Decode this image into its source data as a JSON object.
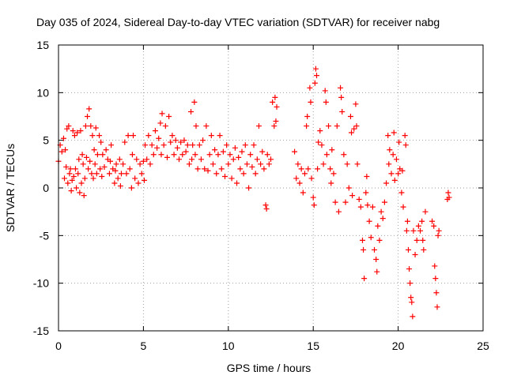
{
  "chart_data": {
    "type": "scatter",
    "title": "Day 035 of 2024, Sidereal Day-to-day VTEC variation (SDTVAR) for receiver nabg",
    "xlabel": "GPS time / hours",
    "ylabel": "SDTVAR / TECUs",
    "xlim": [
      0,
      25
    ],
    "ylim": [
      -15,
      15
    ],
    "xticks": [
      0,
      5,
      10,
      15,
      20,
      25
    ],
    "yticks": [
      -15,
      -10,
      -5,
      0,
      5,
      10,
      15
    ],
    "grid": true,
    "marker": "+",
    "color": "#ff0000",
    "series": [
      {
        "name": "SDTVAR",
        "points": [
          [
            0.0,
            2.8
          ],
          [
            0.1,
            4.5
          ],
          [
            0.2,
            3.8
          ],
          [
            0.3,
            5.2
          ],
          [
            0.35,
            1.0
          ],
          [
            0.4,
            4.0
          ],
          [
            0.45,
            2.2
          ],
          [
            0.5,
            6.2
          ],
          [
            0.55,
            0.5
          ],
          [
            0.6,
            6.5
          ],
          [
            0.65,
            1.5
          ],
          [
            0.7,
            2.0
          ],
          [
            0.75,
            -0.3
          ],
          [
            0.8,
            0.8
          ],
          [
            0.85,
            6.0
          ],
          [
            0.9,
            1.2
          ],
          [
            0.95,
            5.5
          ],
          [
            1.0,
            2.0
          ],
          [
            1.05,
            0.0
          ],
          [
            1.1,
            5.8
          ],
          [
            1.15,
            1.5
          ],
          [
            1.2,
            3.0
          ],
          [
            1.25,
            -0.5
          ],
          [
            1.3,
            6.0
          ],
          [
            1.35,
            0.5
          ],
          [
            1.4,
            3.5
          ],
          [
            1.45,
            2.5
          ],
          [
            1.5,
            -0.8
          ],
          [
            1.55,
            1.0
          ],
          [
            1.6,
            6.5
          ],
          [
            1.65,
            3.2
          ],
          [
            1.7,
            7.5
          ],
          [
            1.75,
            2.0
          ],
          [
            1.8,
            8.3
          ],
          [
            1.85,
            2.8
          ],
          [
            1.9,
            6.5
          ],
          [
            1.95,
            1.5
          ],
          [
            2.0,
            5.5
          ],
          [
            2.05,
            1.0
          ],
          [
            2.1,
            4.0
          ],
          [
            2.15,
            2.5
          ],
          [
            2.2,
            6.3
          ],
          [
            2.25,
            1.5
          ],
          [
            2.3,
            3.5
          ],
          [
            2.4,
            5.5
          ],
          [
            2.45,
            2.0
          ],
          [
            2.5,
            4.8
          ],
          [
            2.55,
            1.2
          ],
          [
            2.6,
            3.5
          ],
          [
            2.7,
            2.2
          ],
          [
            2.8,
            4.0
          ],
          [
            2.9,
            3.0
          ],
          [
            3.0,
            1.5
          ],
          [
            3.05,
            2.8
          ],
          [
            3.1,
            4.5
          ],
          [
            3.2,
            2.0
          ],
          [
            3.3,
            0.5
          ],
          [
            3.35,
            1.8
          ],
          [
            3.4,
            2.5
          ],
          [
            3.5,
            1.0
          ],
          [
            3.6,
            3.0
          ],
          [
            3.65,
            0.2
          ],
          [
            3.7,
            1.5
          ],
          [
            3.8,
            2.5
          ],
          [
            3.9,
            4.8
          ],
          [
            4.0,
            1.5
          ],
          [
            4.1,
            5.5
          ],
          [
            4.2,
            2.0
          ],
          [
            4.3,
            0.0
          ],
          [
            4.35,
            3.5
          ],
          [
            4.4,
            5.5
          ],
          [
            4.5,
            1.0
          ],
          [
            4.6,
            3.0
          ],
          [
            4.7,
            0.5
          ],
          [
            4.8,
            2.5
          ],
          [
            4.9,
            1.5
          ],
          [
            5.0,
            2.8
          ],
          [
            5.05,
            0.8
          ],
          [
            5.1,
            4.5
          ],
          [
            5.2,
            3.0
          ],
          [
            5.3,
            5.5
          ],
          [
            5.4,
            2.5
          ],
          [
            5.5,
            4.5
          ],
          [
            5.6,
            3.5
          ],
          [
            5.7,
            6.0
          ],
          [
            5.8,
            4.2
          ],
          [
            5.9,
            5.2
          ],
          [
            6.0,
            6.8
          ],
          [
            6.05,
            3.5
          ],
          [
            6.1,
            7.8
          ],
          [
            6.2,
            4.5
          ],
          [
            6.3,
            6.5
          ],
          [
            6.4,
            3.2
          ],
          [
            6.5,
            7.5
          ],
          [
            6.6,
            4.8
          ],
          [
            6.7,
            5.5
          ],
          [
            6.8,
            3.5
          ],
          [
            6.9,
            5.0
          ],
          [
            7.0,
            4.2
          ],
          [
            7.1,
            3.0
          ],
          [
            7.2,
            4.8
          ],
          [
            7.3,
            3.5
          ],
          [
            7.4,
            5.0
          ],
          [
            7.5,
            3.8
          ],
          [
            7.6,
            4.5
          ],
          [
            7.7,
            2.5
          ],
          [
            7.8,
            8.0
          ],
          [
            7.85,
            3.0
          ],
          [
            7.9,
            4.5
          ],
          [
            8.0,
            9.0
          ],
          [
            8.05,
            3.5
          ],
          [
            8.1,
            6.5
          ],
          [
            8.2,
            2.0
          ],
          [
            8.3,
            4.5
          ],
          [
            8.4,
            3.0
          ],
          [
            8.5,
            5.0
          ],
          [
            8.6,
            2.0
          ],
          [
            8.7,
            6.5
          ],
          [
            8.8,
            1.8
          ],
          [
            8.9,
            3.5
          ],
          [
            9.0,
            5.5
          ],
          [
            9.1,
            2.5
          ],
          [
            9.2,
            4.0
          ],
          [
            9.3,
            1.5
          ],
          [
            9.4,
            3.5
          ],
          [
            9.5,
            5.5
          ],
          [
            9.6,
            2.0
          ],
          [
            9.7,
            3.8
          ],
          [
            9.8,
            1.2
          ],
          [
            9.9,
            4.5
          ],
          [
            10.0,
            2.5
          ],
          [
            10.1,
            3.5
          ],
          [
            10.2,
            1.0
          ],
          [
            10.3,
            3.0
          ],
          [
            10.4,
            4.2
          ],
          [
            10.5,
            0.5
          ],
          [
            10.6,
            3.2
          ],
          [
            10.7,
            2.0
          ],
          [
            10.8,
            3.8
          ],
          [
            10.9,
            1.5
          ],
          [
            11.0,
            4.5
          ],
          [
            11.1,
            2.5
          ],
          [
            11.2,
            0.0
          ],
          [
            11.3,
            3.5
          ],
          [
            11.4,
            2.2
          ],
          [
            11.5,
            4.5
          ],
          [
            11.6,
            1.5
          ],
          [
            11.7,
            3.0
          ],
          [
            11.8,
            6.5
          ],
          [
            11.9,
            2.5
          ],
          [
            12.0,
            3.8
          ],
          [
            12.1,
            2.0
          ],
          [
            12.2,
            -1.8
          ],
          [
            12.25,
            -2.2
          ],
          [
            12.3,
            3.5
          ],
          [
            12.4,
            2.5
          ],
          [
            12.5,
            3.0
          ],
          [
            12.6,
            9.0
          ],
          [
            12.7,
            6.5
          ],
          [
            12.75,
            9.5
          ],
          [
            12.8,
            7.0
          ],
          [
            12.85,
            8.5
          ],
          [
            13.9,
            3.8
          ],
          [
            14.0,
            1.0
          ],
          [
            14.1,
            2.5
          ],
          [
            14.2,
            0.5
          ],
          [
            14.3,
            2.0
          ],
          [
            14.4,
            -0.5
          ],
          [
            14.5,
            1.5
          ],
          [
            14.6,
            6.5
          ],
          [
            14.65,
            7.5
          ],
          [
            14.7,
            2.0
          ],
          [
            14.8,
            10.5
          ],
          [
            14.85,
            9.0
          ],
          [
            14.9,
            1.0
          ],
          [
            15.0,
            -1.0
          ],
          [
            15.05,
            -1.8
          ],
          [
            15.1,
            11.0
          ],
          [
            15.15,
            12.5
          ],
          [
            15.2,
            11.8
          ],
          [
            15.25,
            2.0
          ],
          [
            15.3,
            4.8
          ],
          [
            15.4,
            6.0
          ],
          [
            15.5,
            4.5
          ],
          [
            15.6,
            2.5
          ],
          [
            15.7,
            10.2
          ],
          [
            15.75,
            9.0
          ],
          [
            15.8,
            3.5
          ],
          [
            15.9,
            6.5
          ],
          [
            16.0,
            2.0
          ],
          [
            16.05,
            0.5
          ],
          [
            16.1,
            4.0
          ],
          [
            16.2,
            1.5
          ],
          [
            16.3,
            -1.5
          ],
          [
            16.4,
            6.5
          ],
          [
            16.5,
            -2.5
          ],
          [
            16.6,
            10.5
          ],
          [
            16.65,
            9.5
          ],
          [
            16.7,
            8.0
          ],
          [
            16.8,
            3.5
          ],
          [
            16.9,
            -1.5
          ],
          [
            17.0,
            2.5
          ],
          [
            17.1,
            0.0
          ],
          [
            17.2,
            7.5
          ],
          [
            17.25,
            5.8
          ],
          [
            17.3,
            -0.8
          ],
          [
            17.4,
            6.2
          ],
          [
            17.5,
            8.8
          ],
          [
            17.55,
            6.5
          ],
          [
            17.6,
            2.5
          ],
          [
            17.7,
            -1.2
          ],
          [
            17.8,
            -2.0
          ],
          [
            17.9,
            -5.5
          ],
          [
            17.95,
            -6.5
          ],
          [
            18.0,
            -9.5
          ],
          [
            18.1,
            -0.5
          ],
          [
            18.15,
            1.2
          ],
          [
            18.2,
            -1.8
          ],
          [
            18.3,
            -3.5
          ],
          [
            18.4,
            -5.2
          ],
          [
            18.5,
            -2.0
          ],
          [
            18.6,
            -6.5
          ],
          [
            18.7,
            -7.5
          ],
          [
            18.75,
            -8.8
          ],
          [
            18.8,
            -4.0
          ],
          [
            18.9,
            -5.5
          ],
          [
            19.0,
            -2.5
          ],
          [
            19.1,
            -3.2
          ],
          [
            19.2,
            -1.5
          ],
          [
            19.3,
            0.5
          ],
          [
            19.4,
            5.5
          ],
          [
            19.45,
            2.5
          ],
          [
            19.5,
            4.0
          ],
          [
            19.6,
            1.5
          ],
          [
            19.7,
            3.5
          ],
          [
            19.75,
            5.8
          ],
          [
            19.8,
            0.8
          ],
          [
            19.9,
            3.0
          ],
          [
            20.0,
            1.5
          ],
          [
            20.05,
            4.8
          ],
          [
            20.1,
            2.0
          ],
          [
            20.2,
            -0.5
          ],
          [
            20.25,
            1.8
          ],
          [
            20.3,
            -2.0
          ],
          [
            20.4,
            5.5
          ],
          [
            20.45,
            4.5
          ],
          [
            20.5,
            -4.5
          ],
          [
            20.55,
            -3.5
          ],
          [
            20.6,
            -6.5
          ],
          [
            20.65,
            -8.5
          ],
          [
            20.7,
            -10.0
          ],
          [
            20.75,
            -11.5
          ],
          [
            20.8,
            -12.0
          ],
          [
            20.85,
            -13.5
          ],
          [
            20.9,
            -4.5
          ],
          [
            21.0,
            -7.0
          ],
          [
            21.1,
            -5.5
          ],
          [
            21.2,
            -4.0
          ],
          [
            21.3,
            -4.5
          ],
          [
            21.4,
            -3.5
          ],
          [
            21.45,
            -5.5
          ],
          [
            21.5,
            -6.5
          ],
          [
            21.6,
            -2.5
          ],
          [
            22.0,
            -3.5
          ],
          [
            22.1,
            -4.0
          ],
          [
            22.15,
            -8.2
          ],
          [
            22.2,
            -9.5
          ],
          [
            22.25,
            -11.0
          ],
          [
            22.3,
            -12.5
          ],
          [
            22.35,
            -5.0
          ],
          [
            22.4,
            -4.5
          ],
          [
            22.9,
            -1.2
          ],
          [
            22.95,
            -0.5
          ],
          [
            23.0,
            -1.0
          ]
        ]
      }
    ]
  }
}
